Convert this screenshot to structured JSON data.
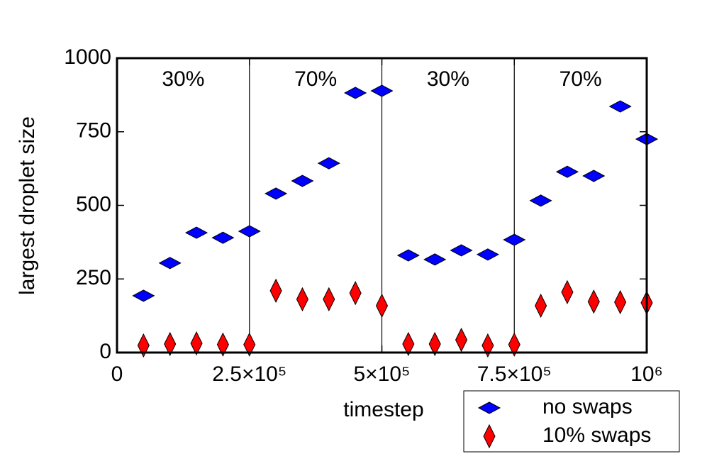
{
  "chart_data": {
    "type": "scatter",
    "xlabel": "timestep",
    "ylabel": "largest droplet size",
    "x": [
      50000,
      100000,
      150000,
      200000,
      250000,
      300000,
      350000,
      400000,
      450000,
      500000,
      550000,
      600000,
      650000,
      700000,
      750000,
      800000,
      850000,
      900000,
      950000,
      1000000
    ],
    "series": [
      {
        "name": "no swaps",
        "color": "#0000ff",
        "marker": "hdiamond",
        "values": [
          193,
          304,
          407,
          390,
          412,
          540,
          583,
          643,
          882,
          889,
          330,
          316,
          347,
          333,
          383,
          516,
          614,
          600,
          836,
          725
        ]
      },
      {
        "name": "10% swaps",
        "color": "#ff0000",
        "marker": "vdiamond",
        "values": [
          24,
          29,
          31,
          27,
          27,
          210,
          181,
          181,
          202,
          159,
          29,
          29,
          43,
          24,
          27,
          159,
          205,
          173,
          171,
          169
        ]
      }
    ],
    "xlim": [
      0,
      1000000
    ],
    "ylim": [
      0,
      1000
    ],
    "xticks": [
      0,
      {
        "value": 250000,
        "label": "2.5×10⁵"
      },
      {
        "value": 500000,
        "label": "5×10⁵"
      },
      {
        "value": 750000,
        "label": "7.5×10⁵"
      },
      {
        "value": 1000000,
        "label": "10⁶"
      }
    ],
    "yticks": [
      0,
      250,
      500,
      750,
      1000
    ],
    "vlines": [
      250000,
      500000,
      750000
    ],
    "region_labels": [
      "30%",
      "70%",
      "30%",
      "70%"
    ],
    "legend": "below-right"
  }
}
